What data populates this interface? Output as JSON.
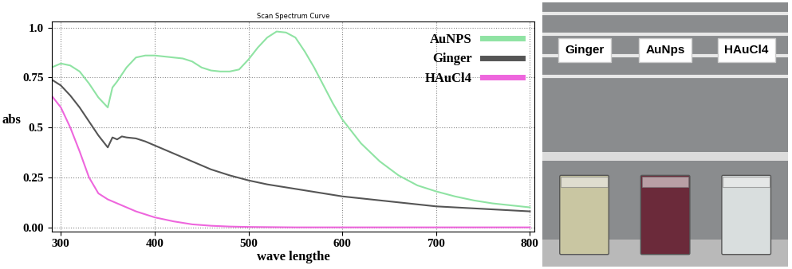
{
  "chart_data": {
    "type": "line",
    "title": "Scan Spectrum Curve",
    "x_label": "wave lengthe",
    "y_label": "abs",
    "xlim": [
      290,
      805
    ],
    "xticks": [
      300,
      400,
      500,
      600,
      700,
      800
    ],
    "ylim": [
      -0.02,
      1.03
    ],
    "yticks": [
      {
        "value": 0,
        "label": "0.00"
      },
      {
        "value": 0.25,
        "label": "0.25"
      },
      {
        "value": 0.5,
        "label": "0.5"
      },
      {
        "value": 0.75,
        "label": "0.75"
      },
      {
        "value": 1.0,
        "label": "1.0"
      }
    ],
    "grid": true,
    "legend": "upper right",
    "series": [
      {
        "name": "AuNPS",
        "color": "#8fe3a3",
        "x": [
          290,
          300,
          310,
          320,
          330,
          340,
          350,
          355,
          360,
          370,
          380,
          390,
          400,
          410,
          420,
          430,
          440,
          450,
          460,
          470,
          480,
          490,
          500,
          510,
          520,
          530,
          540,
          550,
          560,
          570,
          580,
          590,
          600,
          620,
          640,
          660,
          680,
          700,
          720,
          740,
          760,
          780,
          800
        ],
        "values": [
          0.8,
          0.82,
          0.81,
          0.78,
          0.72,
          0.65,
          0.6,
          0.7,
          0.73,
          0.8,
          0.85,
          0.86,
          0.86,
          0.855,
          0.85,
          0.845,
          0.83,
          0.8,
          0.785,
          0.78,
          0.78,
          0.79,
          0.84,
          0.9,
          0.95,
          0.98,
          0.975,
          0.95,
          0.88,
          0.8,
          0.71,
          0.62,
          0.54,
          0.42,
          0.33,
          0.26,
          0.21,
          0.18,
          0.155,
          0.135,
          0.12,
          0.11,
          0.1
        ]
      },
      {
        "name": "Ginger",
        "color": "#555555",
        "x": [
          290,
          300,
          310,
          320,
          330,
          340,
          350,
          355,
          360,
          365,
          370,
          380,
          390,
          400,
          420,
          440,
          460,
          480,
          500,
          520,
          540,
          560,
          580,
          600,
          620,
          640,
          660,
          680,
          700,
          720,
          740,
          760,
          780,
          800
        ],
        "values": [
          0.74,
          0.71,
          0.66,
          0.6,
          0.53,
          0.46,
          0.4,
          0.45,
          0.44,
          0.455,
          0.45,
          0.445,
          0.43,
          0.41,
          0.37,
          0.33,
          0.29,
          0.26,
          0.235,
          0.215,
          0.2,
          0.185,
          0.17,
          0.155,
          0.145,
          0.135,
          0.125,
          0.115,
          0.105,
          0.1,
          0.095,
          0.09,
          0.085,
          0.08
        ]
      },
      {
        "name": "HAuCl4",
        "color": "#ee66dd",
        "x": [
          290,
          300,
          310,
          320,
          330,
          340,
          350,
          360,
          380,
          400,
          420,
          440,
          460,
          480,
          500,
          550,
          600,
          700,
          800
        ],
        "values": [
          0.66,
          0.6,
          0.5,
          0.38,
          0.25,
          0.17,
          0.14,
          0.12,
          0.08,
          0.05,
          0.03,
          0.015,
          0.008,
          0.004,
          0.002,
          0.0,
          0.0,
          0.0,
          0.0
        ]
      }
    ]
  },
  "photo": {
    "vials": [
      {
        "label": "Ginger",
        "color": "#c9c6a2"
      },
      {
        "label": "AuNps",
        "color": "#6b2a3a"
      },
      {
        "label": "HAuCl4",
        "color": "#d9dede"
      }
    ]
  }
}
